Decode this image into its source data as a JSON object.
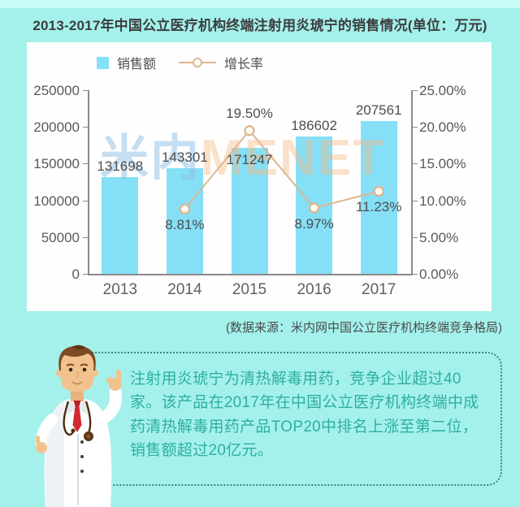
{
  "page": {
    "title": "2013-2017年中国公立医疗机构终端注射用炎琥宁的销售情况(单位：万元)",
    "source": "(数据来源：米内网中国公立医疗机构终端竞争格局)"
  },
  "watermark": {
    "cn": "米内",
    "en": "MENET"
  },
  "chart_data": {
    "type": "bar",
    "subtype": "bar-line-combo",
    "title": "2013-2017年中国公立医疗机构终端注射用炎琥宁的销售情况(单位：万元)",
    "categories": [
      "2013",
      "2014",
      "2015",
      "2016",
      "2017"
    ],
    "series": [
      {
        "name": "销售额",
        "type": "bar",
        "axis": "left",
        "values": [
          131698,
          143301,
          171247,
          186602,
          207561
        ],
        "labels": [
          "131698",
          "143301",
          "171247",
          "186602",
          "207561"
        ],
        "color": "#85dff6"
      },
      {
        "name": "增长率",
        "type": "line",
        "axis": "right",
        "values": [
          null,
          8.81,
          19.5,
          8.97,
          11.23
        ],
        "labels": [
          "",
          "8.81%",
          "19.50%",
          "8.97%",
          "11.23%"
        ],
        "color": "#ddb791"
      }
    ],
    "left_axis": {
      "min": 0,
      "max": 250000,
      "step": 50000,
      "ticks": [
        "0",
        "50000",
        "100000",
        "150000",
        "200000",
        "250000"
      ]
    },
    "right_axis": {
      "min": 0,
      "max": 25,
      "step": 5,
      "ticks": [
        "0.00%",
        "5.00%",
        "10.00%",
        "15.00%",
        "20.00%",
        "25.00%"
      ]
    },
    "legend": {
      "position": "top",
      "items": [
        "销售额",
        "增长率"
      ]
    },
    "grid": false
  },
  "note": {
    "text": "注射用炎琥宁为清热解毒用药，竞争企业超过40家。该产品在2017年在中国公立医疗机构终端中成药清热解毒用药产品TOP20中排名上涨至第二位，销售额超过20亿元。"
  },
  "colors": {
    "background": "#a4f1ec",
    "panel": "#fefefe",
    "bar": "#85dff6",
    "line": "#ddb791",
    "note_text": "#2fafa0",
    "note_border": "#44817e",
    "title_text": "#3d3d3d",
    "axis_text": "#595959"
  }
}
